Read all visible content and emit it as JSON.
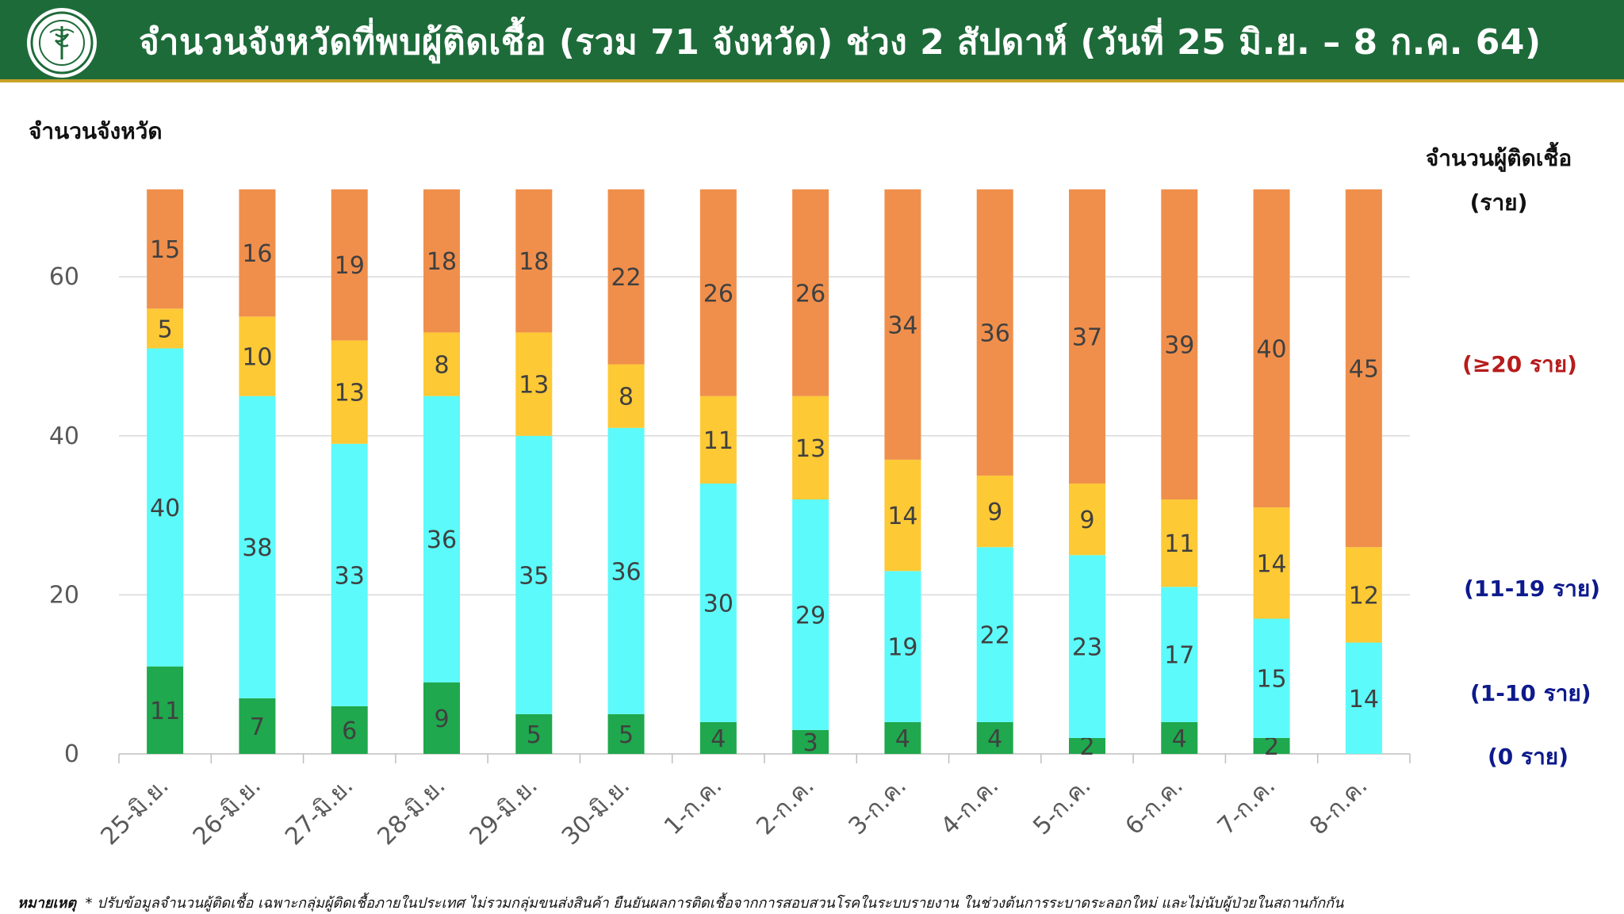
{
  "header": {
    "title": "จำนวนจังหวัดที่พบผู้ติดเชื้อ (รวม 71 จังหวัด) ช่วง 2 สัปดาห์ (วันที่ 25 มิ.ย. – 8 ก.ค. 64)",
    "logo_icon": "ministry-of-public-health-seal"
  },
  "left_axis_title": "จำนวนจังหวัด",
  "legend": {
    "title_line1": "จำนวนผู้ติดเชื้อ",
    "title_line2": "(ราย)",
    "items": [
      {
        "label": "(≥20 ราย)",
        "color": "#b71c1c"
      },
      {
        "label": "(11-19 ราย)",
        "color": "#0d1a8c"
      },
      {
        "label": "(1-10 ราย)",
        "color": "#0d1a8c"
      },
      {
        "label": "(0 ราย)",
        "color": "#0d1a8c"
      }
    ]
  },
  "chart_data": {
    "type": "stacked-bar",
    "ylabel": "จำนวนจังหวัด",
    "ylim": [
      0,
      70
    ],
    "yticks": [
      0,
      20,
      40,
      60
    ],
    "grid": true,
    "categories": [
      "25-มิ.ย.",
      "26-มิ.ย.",
      "27-มิ.ย.",
      "28-มิ.ย.",
      "29-มิ.ย.",
      "30-มิ.ย.",
      "1-ก.ค.",
      "2-ก.ค.",
      "3-ก.ค.",
      "4-ก.ค.",
      "5-ก.ค.",
      "6-ก.ค.",
      "7-ก.ค.",
      "8-ก.ค."
    ],
    "series": [
      {
        "name": "0 ราย",
        "color": "#1fa84d",
        "values": [
          11,
          7,
          6,
          9,
          5,
          5,
          4,
          3,
          4,
          4,
          2,
          4,
          2,
          0
        ]
      },
      {
        "name": "1-10 ราย",
        "color": "#5cfafa",
        "values": [
          40,
          38,
          33,
          36,
          35,
          36,
          30,
          29,
          19,
          22,
          23,
          17,
          15,
          14
        ]
      },
      {
        "name": "11-19 ราย",
        "color": "#fdc935",
        "values": [
          5,
          10,
          13,
          8,
          13,
          8,
          11,
          13,
          14,
          9,
          9,
          11,
          14,
          12
        ]
      },
      {
        "name": "≥20 ราย",
        "color": "#f08f4c",
        "values": [
          15,
          16,
          19,
          18,
          18,
          22,
          26,
          26,
          34,
          36,
          37,
          39,
          40,
          45
        ]
      }
    ]
  },
  "footnote": {
    "label": "หมายเหตุ",
    "text": "* ปรับข้อมูลจำนวนผู้ติดเชื้อ เฉพาะกลุ่มผู้ติดเชื้อภายในประเทศ ไม่รวมกลุ่มขนส่งสินค้า ยืนยันผลการติดเชื้อจากการสอบสวนโรคในระบบรายงาน ในช่วงต้นการระบาดระลอกใหม่ และไม่นับผู้ป่วยในสถานกักกัน"
  }
}
